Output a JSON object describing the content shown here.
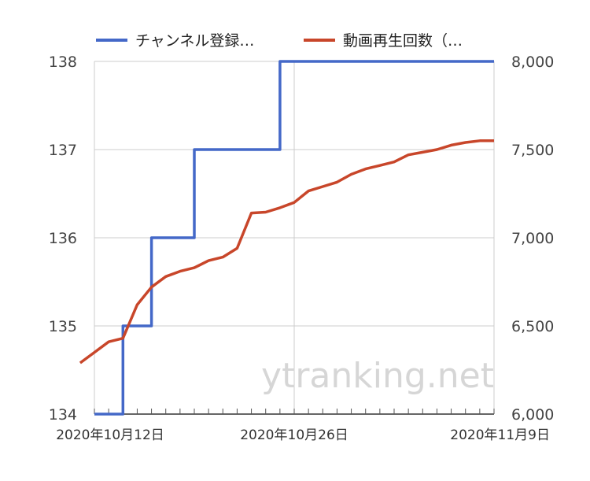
{
  "chart_data": {
    "type": "line",
    "legend": [
      {
        "name": "チャンネル登録…",
        "color": "#4468C8",
        "axis": "left"
      },
      {
        "name": "動画再生回数（…",
        "color": "#C8462A",
        "axis": "right"
      }
    ],
    "x_tick_labels": [
      "2020年10月12日",
      "2020年10月26日",
      "2020年11月9日"
    ],
    "x_ticks": [
      0,
      14,
      28
    ],
    "x_range": [
      0,
      28
    ],
    "y_left": {
      "ticks": [
        "134",
        "135",
        "136",
        "137",
        "138"
      ],
      "min": 134,
      "max": 138
    },
    "y_right": {
      "ticks": [
        "6,000",
        "6,500",
        "7,000",
        "7,500",
        "8,000"
      ],
      "min": 6000,
      "max": 8000
    },
    "series": [
      {
        "name": "チャンネル登録…",
        "axis": "left",
        "color": "#4468C8",
        "step": true,
        "x": [
          0,
          1,
          2,
          3,
          4,
          5,
          6,
          7,
          8,
          9,
          10,
          11,
          12,
          13,
          14,
          15,
          16,
          17,
          18,
          19,
          20,
          21,
          22,
          23,
          24,
          25,
          26,
          27,
          28
        ],
        "y": [
          134,
          134,
          135,
          135,
          136,
          136,
          136,
          137,
          137,
          137,
          137,
          137,
          137,
          138,
          138,
          138,
          138,
          138,
          138,
          138,
          138,
          138,
          138,
          138,
          138,
          138,
          138,
          138,
          138
        ]
      },
      {
        "name": "動画再生回数（…",
        "axis": "right",
        "color": "#C8462A",
        "step": false,
        "x": [
          -1,
          0,
          1,
          2,
          3,
          4,
          5,
          6,
          7,
          8,
          9,
          10,
          11,
          12,
          13,
          14,
          15,
          16,
          17,
          18,
          19,
          20,
          21,
          22,
          23,
          24,
          25,
          26,
          27,
          28
        ],
        "y": [
          6290,
          6350,
          6410,
          6430,
          6620,
          6720,
          6780,
          6810,
          6830,
          6870,
          6890,
          6940,
          7140,
          7145,
          7170,
          7200,
          7265,
          7290,
          7315,
          7360,
          7390,
          7410,
          7430,
          7470,
          7485,
          7500,
          7525,
          7540,
          7550,
          7550
        ]
      }
    ],
    "watermark": "ytranking.net"
  }
}
